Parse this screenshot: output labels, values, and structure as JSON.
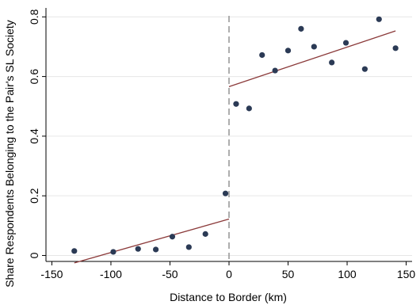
{
  "chart_data": {
    "type": "scatter",
    "xlabel": "Distance to Border (km)",
    "ylabel": "Share Respondents Belonging to the Pair's SL Society",
    "xlim": [
      -155,
      155
    ],
    "ylim": [
      -0.02,
      0.83
    ],
    "x_ticks": [
      -150,
      -100,
      -50,
      0,
      50,
      100,
      150
    ],
    "y_ticks": [
      0,
      0.2,
      0.4,
      0.6,
      0.8
    ],
    "x_tick_labels": [
      "-150",
      "-100",
      "-50",
      "0",
      "50",
      "100",
      "150"
    ],
    "y_tick_labels": [
      "0",
      "0.2",
      "0.4",
      "0.6",
      "0.8"
    ],
    "grid": "horizontal",
    "cutoff_x": 0,
    "colors": {
      "points": "#2b3a55",
      "fit": "#8b3a3a",
      "cutoff": "#999999",
      "grid": "#e6e6e6"
    },
    "points": [
      {
        "x": -131,
        "y": 0.015
      },
      {
        "x": -98,
        "y": 0.012
      },
      {
        "x": -77,
        "y": 0.022
      },
      {
        "x": -62,
        "y": 0.02
      },
      {
        "x": -48,
        "y": 0.063
      },
      {
        "x": -34,
        "y": 0.028
      },
      {
        "x": -20,
        "y": 0.072
      },
      {
        "x": -3,
        "y": 0.208
      },
      {
        "x": 6,
        "y": 0.508
      },
      {
        "x": 17,
        "y": 0.493
      },
      {
        "x": 28,
        "y": 0.672
      },
      {
        "x": 39,
        "y": 0.62
      },
      {
        "x": 50,
        "y": 0.687
      },
      {
        "x": 61,
        "y": 0.76
      },
      {
        "x": 72,
        "y": 0.7
      },
      {
        "x": 87,
        "y": 0.647
      },
      {
        "x": 99,
        "y": 0.713
      },
      {
        "x": 115,
        "y": 0.625
      },
      {
        "x": 127,
        "y": 0.792
      },
      {
        "x": 141,
        "y": 0.695
      }
    ],
    "fit_lines": [
      {
        "x": [
          -131,
          0
        ],
        "y": [
          -0.025,
          0.122
        ]
      },
      {
        "x": [
          0,
          141
        ],
        "y": [
          0.566,
          0.753
        ]
      }
    ]
  }
}
